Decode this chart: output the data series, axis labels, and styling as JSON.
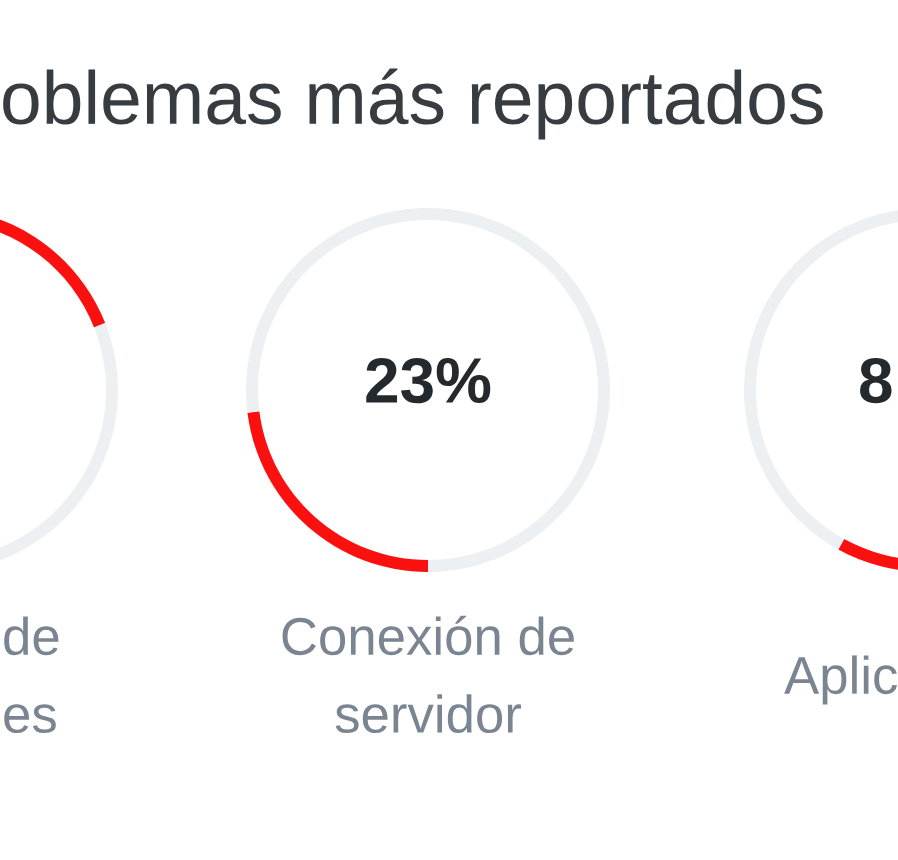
{
  "chart_data": [
    {
      "type": "donut",
      "xlabel": "de\nes",
      "categories": [
        null,
        null
      ],
      "values": [
        69,
        31
      ],
      "colors": [
        "#fb1010",
        "#edf0f2"
      ]
    },
    {
      "type": "donut",
      "title": "oblemas más reportados",
      "xlabel": "Conexión de\nservidor",
      "categories": [
        null,
        null
      ],
      "values": [
        23,
        77
      ],
      "colors": [
        "#fb1010",
        "#edf0f2"
      ],
      "annotations": [
        "23%"
      ]
    },
    {
      "type": "donut",
      "xlabel": "Aplic",
      "categories": [
        null,
        null
      ],
      "values": [
        8,
        92
      ],
      "colors": [
        "#fb1010",
        "#edf0f2"
      ],
      "annotations": [
        "8"
      ]
    }
  ]
}
